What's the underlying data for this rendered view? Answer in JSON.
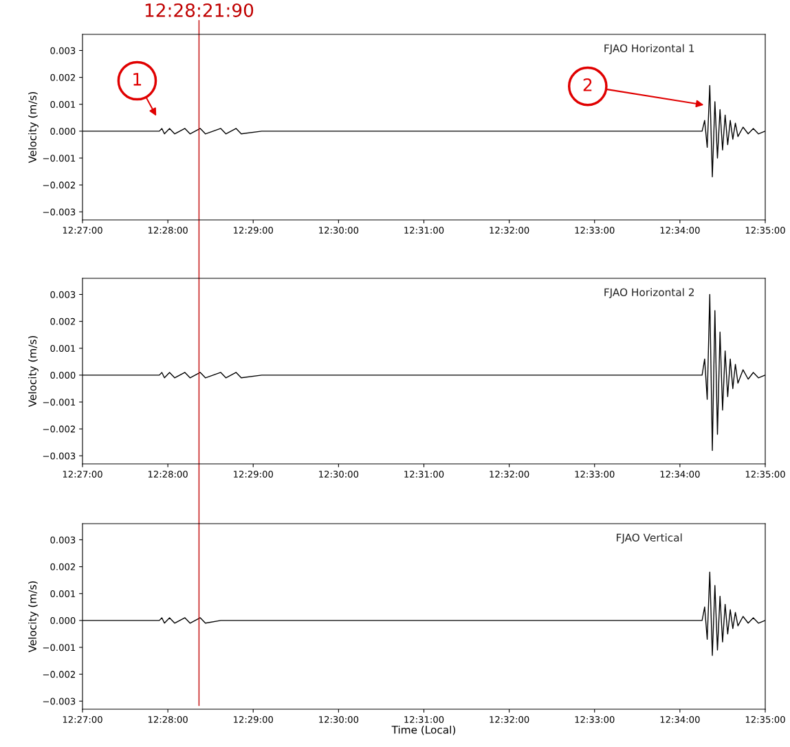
{
  "chart_data": [
    {
      "type": "line",
      "ylabel": "Velocity (m/s)",
      "xlim": [
        12.45,
        12.583333
      ],
      "ylim": [
        -0.0033,
        0.0036
      ],
      "xticks": [
        {
          "value": 12.45,
          "label": "12:27:00"
        },
        {
          "value": 12.466667,
          "label": "12:28:00"
        },
        {
          "value": 12.483333,
          "label": "12:29:00"
        },
        {
          "value": 12.5,
          "label": "12:30:00"
        },
        {
          "value": 12.516667,
          "label": "12:31:00"
        },
        {
          "value": 12.533333,
          "label": "12:32:00"
        },
        {
          "value": 12.55,
          "label": "12:33:00"
        },
        {
          "value": 12.566667,
          "label": "12:34:00"
        },
        {
          "value": 12.583333,
          "label": "12:35:00"
        }
      ],
      "yticks": [
        {
          "value": -0.003,
          "label": "−0.003"
        },
        {
          "value": -0.002,
          "label": "−0.002"
        },
        {
          "value": -0.001,
          "label": "−0.001"
        },
        {
          "value": 0.0,
          "label": "0.000"
        },
        {
          "value": 0.001,
          "label": "0.001"
        },
        {
          "value": 0.002,
          "label": "0.002"
        },
        {
          "value": 0.003,
          "label": "0.003"
        }
      ],
      "x": [
        12.45,
        12.465,
        12.4655,
        12.466,
        12.467,
        12.468,
        12.47,
        12.471,
        12.473,
        12.474,
        12.477,
        12.478,
        12.48,
        12.481,
        12.485,
        12.486,
        12.49,
        12.491,
        12.5,
        12.501,
        12.51,
        12.511,
        12.52,
        12.521,
        12.53,
        12.531,
        12.54,
        12.541,
        12.55,
        12.551,
        12.56,
        12.561,
        12.571,
        12.5715,
        12.572,
        12.5725,
        12.573,
        12.5735,
        12.574,
        12.5745,
        12.575,
        12.5755,
        12.576,
        12.5765,
        12.577,
        12.5775,
        12.578,
        12.579,
        12.58,
        12.581,
        12.582,
        12.5833
      ],
      "series": [
        {
          "name": "FJAO Horizontal 1",
          "color": "#000000",
          "values": [
            0,
            0,
            0.0001,
            -0.0001,
            0.0001,
            -0.0001,
            0.0001,
            -0.0001,
            0.0001,
            -0.0001,
            0.0001,
            -0.0001,
            0.0001,
            -0.0001,
            0,
            0,
            0,
            0,
            0,
            0,
            0,
            0,
            0,
            0,
            0,
            0,
            0,
            0,
            0,
            0,
            0,
            0,
            0,
            0.0004,
            -0.0006,
            0.0017,
            -0.0017,
            0.0011,
            -0.001,
            0.0008,
            -0.0007,
            0.0006,
            -0.0005,
            0.0004,
            -0.0003,
            0.0003,
            -0.0002,
            0.00015,
            -0.0001,
            0.0001,
            -0.0001,
            0
          ]
        }
      ],
      "ref_lines": [
        {
          "axis": "x",
          "value": 12.47275,
          "label": "12:28:21:90",
          "color": "#c00000"
        }
      ],
      "annotations": [
        "1",
        "2"
      ]
    },
    {
      "type": "line",
      "ylabel": "Velocity (m/s)",
      "xlim": [
        12.45,
        12.583333
      ],
      "ylim": [
        -0.0033,
        0.0036
      ],
      "xticks": [
        {
          "value": 12.45,
          "label": "12:27:00"
        },
        {
          "value": 12.466667,
          "label": "12:28:00"
        },
        {
          "value": 12.483333,
          "label": "12:29:00"
        },
        {
          "value": 12.5,
          "label": "12:30:00"
        },
        {
          "value": 12.516667,
          "label": "12:31:00"
        },
        {
          "value": 12.533333,
          "label": "12:32:00"
        },
        {
          "value": 12.55,
          "label": "12:33:00"
        },
        {
          "value": 12.566667,
          "label": "12:34:00"
        },
        {
          "value": 12.583333,
          "label": "12:35:00"
        }
      ],
      "yticks": [
        {
          "value": -0.003,
          "label": "−0.003"
        },
        {
          "value": -0.002,
          "label": "−0.002"
        },
        {
          "value": -0.001,
          "label": "−0.001"
        },
        {
          "value": 0.0,
          "label": "0.000"
        },
        {
          "value": 0.001,
          "label": "0.001"
        },
        {
          "value": 0.002,
          "label": "0.002"
        },
        {
          "value": 0.003,
          "label": "0.003"
        }
      ],
      "x": [
        12.45,
        12.465,
        12.4655,
        12.466,
        12.467,
        12.468,
        12.47,
        12.471,
        12.473,
        12.474,
        12.477,
        12.478,
        12.48,
        12.481,
        12.485,
        12.486,
        12.49,
        12.491,
        12.5,
        12.501,
        12.51,
        12.511,
        12.52,
        12.521,
        12.53,
        12.531,
        12.54,
        12.541,
        12.55,
        12.551,
        12.56,
        12.561,
        12.571,
        12.5715,
        12.572,
        12.5725,
        12.573,
        12.5735,
        12.574,
        12.5745,
        12.575,
        12.5755,
        12.576,
        12.5765,
        12.577,
        12.5775,
        12.578,
        12.579,
        12.58,
        12.581,
        12.582,
        12.5833
      ],
      "series": [
        {
          "name": "FJAO Horizontal 2",
          "color": "#000000",
          "values": [
            0,
            0,
            0.0001,
            -0.0001,
            0.0001,
            -0.0001,
            0.0001,
            -0.0001,
            0.0001,
            -0.0001,
            0.0001,
            -0.0001,
            0.0001,
            -0.0001,
            0,
            0,
            0,
            0,
            0,
            0,
            0,
            0,
            0,
            0,
            0,
            0,
            0,
            0,
            0,
            0,
            0,
            0,
            0,
            0.0006,
            -0.0009,
            0.003,
            -0.0028,
            0.0024,
            -0.0022,
            0.0016,
            -0.0013,
            0.0009,
            -0.0008,
            0.0006,
            -0.0005,
            0.0004,
            -0.0003,
            0.0002,
            -0.00015,
            0.0001,
            -0.0001,
            0
          ]
        }
      ],
      "ref_lines": [
        {
          "axis": "x",
          "value": 12.47275,
          "color": "#c00000"
        }
      ]
    },
    {
      "type": "line",
      "xlabel": "Time (Local)",
      "ylabel": "Velocity (m/s)",
      "xlim": [
        12.45,
        12.583333
      ],
      "ylim": [
        -0.0033,
        0.0036
      ],
      "xticks": [
        {
          "value": 12.45,
          "label": "12:27:00"
        },
        {
          "value": 12.466667,
          "label": "12:28:00"
        },
        {
          "value": 12.483333,
          "label": "12:29:00"
        },
        {
          "value": 12.5,
          "label": "12:30:00"
        },
        {
          "value": 12.516667,
          "label": "12:31:00"
        },
        {
          "value": 12.533333,
          "label": "12:32:00"
        },
        {
          "value": 12.55,
          "label": "12:33:00"
        },
        {
          "value": 12.566667,
          "label": "12:34:00"
        },
        {
          "value": 12.583333,
          "label": "12:35:00"
        }
      ],
      "yticks": [
        {
          "value": -0.003,
          "label": "−0.003"
        },
        {
          "value": -0.002,
          "label": "−0.002"
        },
        {
          "value": -0.001,
          "label": "−0.001"
        },
        {
          "value": 0.0,
          "label": "0.000"
        },
        {
          "value": 0.001,
          "label": "0.001"
        },
        {
          "value": 0.002,
          "label": "0.002"
        },
        {
          "value": 0.003,
          "label": "0.003"
        }
      ],
      "x": [
        12.45,
        12.465,
        12.4655,
        12.466,
        12.467,
        12.468,
        12.47,
        12.471,
        12.473,
        12.474,
        12.477,
        12.478,
        12.48,
        12.481,
        12.485,
        12.486,
        12.49,
        12.491,
        12.5,
        12.501,
        12.51,
        12.511,
        12.52,
        12.521,
        12.53,
        12.531,
        12.54,
        12.541,
        12.55,
        12.551,
        12.56,
        12.561,
        12.571,
        12.5715,
        12.572,
        12.5725,
        12.573,
        12.5735,
        12.574,
        12.5745,
        12.575,
        12.5755,
        12.576,
        12.5765,
        12.577,
        12.5775,
        12.578,
        12.579,
        12.58,
        12.581,
        12.582,
        12.5833
      ],
      "series": [
        {
          "name": "FJAO Vertical",
          "color": "#000000",
          "values": [
            0,
            0,
            0.0001,
            -0.0001,
            0.0001,
            -0.0001,
            0.0001,
            -0.0001,
            0.0001,
            -0.0001,
            0,
            0,
            0,
            0,
            0,
            0,
            0,
            0,
            0,
            0,
            0,
            0,
            0,
            0,
            0,
            0,
            0,
            0,
            0,
            0,
            0,
            0,
            0,
            0.0005,
            -0.0007,
            0.0018,
            -0.0013,
            0.0013,
            -0.0011,
            0.0009,
            -0.0008,
            0.0006,
            -0.0005,
            0.0004,
            -0.0003,
            0.0003,
            -0.0002,
            0.00015,
            -0.0001,
            0.0001,
            -0.0001,
            0
          ]
        }
      ],
      "ref_lines": [
        {
          "axis": "x",
          "value": 12.47275,
          "color": "#c00000"
        }
      ]
    }
  ]
}
